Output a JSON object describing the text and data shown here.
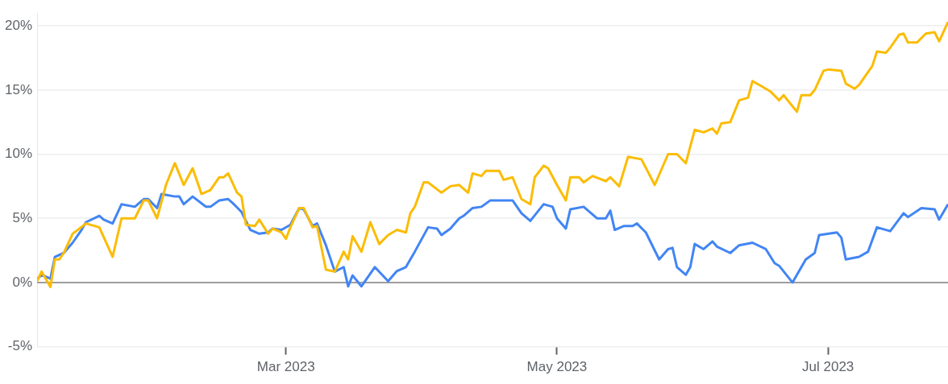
{
  "chart_data": {
    "type": "line",
    "xlim": [
      "2023-01-04",
      "2023-07-28"
    ],
    "xticks": [
      {
        "value": "2023-03-01",
        "label": "Mar 2023"
      },
      {
        "value": "2023-05-01",
        "label": "May 2023"
      },
      {
        "value": "2023-07-01",
        "label": "Jul 2023"
      }
    ],
    "ylim": [
      -5,
      21
    ],
    "yticks": [
      {
        "value": -5,
        "label": "-5%"
      },
      {
        "value": 0,
        "label": "0%"
      },
      {
        "value": 5,
        "label": "5%"
      },
      {
        "value": 10,
        "label": "10%"
      },
      {
        "value": 15,
        "label": "15%"
      },
      {
        "value": 20,
        "label": "20%"
      }
    ],
    "grid": "y",
    "legend": false,
    "marker": "none",
    "line_style": "solid",
    "ref_lines": [
      {
        "axis": "y",
        "value": 0,
        "color": "#9e9e9e"
      }
    ],
    "series": [
      {
        "color": "#fbbc04",
        "x": [
          "2023-01-04",
          "2023-01-05",
          "2023-01-07",
          "2023-01-08",
          "2023-01-09",
          "2023-01-10",
          "2023-01-12",
          "2023-01-15",
          "2023-01-18",
          "2023-01-21",
          "2023-01-23",
          "2023-01-26",
          "2023-01-28",
          "2023-01-29",
          "2023-01-31",
          "2023-02-02",
          "2023-02-04",
          "2023-02-06",
          "2023-02-08",
          "2023-02-10",
          "2023-02-12",
          "2023-02-14",
          "2023-02-15",
          "2023-02-16",
          "2023-02-18",
          "2023-02-19",
          "2023-02-20",
          "2023-02-22",
          "2023-02-23",
          "2023-02-25",
          "2023-02-26",
          "2023-02-28",
          "2023-03-01",
          "2023-03-02",
          "2023-03-04",
          "2023-03-05",
          "2023-03-07",
          "2023-03-08",
          "2023-03-10",
          "2023-03-12",
          "2023-03-14",
          "2023-03-15",
          "2023-03-16",
          "2023-03-18",
          "2023-03-20",
          "2023-03-22",
          "2023-03-24",
          "2023-03-26",
          "2023-03-28",
          "2023-03-29",
          "2023-03-30",
          "2023-04-01",
          "2023-04-02",
          "2023-04-05",
          "2023-04-07",
          "2023-04-09",
          "2023-04-11",
          "2023-04-12",
          "2023-04-14",
          "2023-04-15",
          "2023-04-18",
          "2023-04-19",
          "2023-04-21",
          "2023-04-23",
          "2023-04-25",
          "2023-04-26",
          "2023-04-28",
          "2023-04-29",
          "2023-05-01",
          "2023-05-03",
          "2023-05-04",
          "2023-05-06",
          "2023-05-07",
          "2023-05-09",
          "2023-05-12",
          "2023-05-13",
          "2023-05-15",
          "2023-05-17",
          "2023-05-20",
          "2023-05-23",
          "2023-05-26",
          "2023-05-28",
          "2023-05-30",
          "2023-06-01",
          "2023-06-03",
          "2023-06-05",
          "2023-06-06",
          "2023-06-07",
          "2023-06-09",
          "2023-06-11",
          "2023-06-13",
          "2023-06-14",
          "2023-06-16",
          "2023-06-18",
          "2023-06-20",
          "2023-06-21",
          "2023-06-24",
          "2023-06-25",
          "2023-06-27",
          "2023-06-28",
          "2023-06-30",
          "2023-07-01",
          "2023-07-04",
          "2023-07-05",
          "2023-07-07",
          "2023-07-08",
          "2023-07-11",
          "2023-07-12",
          "2023-07-14",
          "2023-07-15",
          "2023-07-17",
          "2023-07-18",
          "2023-07-19",
          "2023-07-21",
          "2023-07-23",
          "2023-07-25",
          "2023-07-26",
          "2023-07-28"
        ],
        "values": [
          0.1,
          0.85,
          -0.35,
          1.8,
          1.8,
          2.3,
          3.8,
          4.6,
          4.3,
          2.0,
          5.0,
          5.0,
          6.4,
          6.4,
          5.0,
          7.6,
          9.3,
          7.6,
          8.9,
          6.9,
          7.2,
          8.2,
          8.2,
          8.5,
          7.0,
          6.7,
          4.5,
          4.4,
          4.9,
          3.8,
          4.2,
          3.9,
          3.4,
          4.3,
          5.8,
          5.8,
          4.3,
          4.4,
          1.0,
          0.85,
          2.4,
          1.8,
          3.6,
          2.4,
          4.7,
          3.0,
          3.7,
          4.1,
          3.9,
          5.4,
          5.9,
          7.8,
          7.8,
          7.0,
          7.5,
          7.6,
          7.0,
          8.5,
          8.3,
          8.7,
          8.7,
          8.0,
          8.2,
          6.5,
          6.1,
          8.2,
          9.1,
          8.9,
          7.6,
          6.4,
          8.2,
          8.2,
          7.8,
          8.3,
          7.9,
          8.2,
          7.5,
          9.8,
          9.6,
          7.6,
          10.0,
          10.0,
          9.3,
          11.9,
          11.7,
          12.0,
          11.6,
          12.4,
          12.5,
          14.2,
          14.4,
          15.7,
          15.3,
          14.9,
          14.2,
          14.6,
          13.3,
          14.6,
          14.6,
          15.0,
          16.5,
          16.6,
          16.5,
          15.5,
          15.1,
          15.4,
          16.9,
          18.0,
          17.9,
          18.3,
          19.3,
          19.4,
          18.7,
          18.7,
          19.4,
          19.5,
          18.8,
          20.3
        ]
      },
      {
        "color": "#4285f4",
        "x": [
          "2023-01-04",
          "2023-01-05",
          "2023-01-07",
          "2023-01-08",
          "2023-01-10",
          "2023-01-12",
          "2023-01-14",
          "2023-01-15",
          "2023-01-18",
          "2023-01-19",
          "2023-01-21",
          "2023-01-23",
          "2023-01-26",
          "2023-01-28",
          "2023-01-29",
          "2023-01-31",
          "2023-02-01",
          "2023-02-04",
          "2023-02-05",
          "2023-02-06",
          "2023-02-08",
          "2023-02-11",
          "2023-02-12",
          "2023-02-14",
          "2023-02-16",
          "2023-02-17",
          "2023-02-19",
          "2023-02-21",
          "2023-02-23",
          "2023-02-25",
          "2023-02-26",
          "2023-02-28",
          "2023-03-02",
          "2023-03-04",
          "2023-03-05",
          "2023-03-07",
          "2023-03-08",
          "2023-03-10",
          "2023-03-12",
          "2023-03-14",
          "2023-03-15",
          "2023-03-16",
          "2023-03-18",
          "2023-03-21",
          "2023-03-24",
          "2023-03-26",
          "2023-03-28",
          "2023-03-30",
          "2023-04-02",
          "2023-04-04",
          "2023-04-05",
          "2023-04-07",
          "2023-04-09",
          "2023-04-10",
          "2023-04-12",
          "2023-04-14",
          "2023-04-16",
          "2023-04-19",
          "2023-04-21",
          "2023-04-23",
          "2023-04-25",
          "2023-04-28",
          "2023-04-30",
          "2023-05-01",
          "2023-05-03",
          "2023-05-04",
          "2023-05-07",
          "2023-05-10",
          "2023-05-12",
          "2023-05-13",
          "2023-05-14",
          "2023-05-16",
          "2023-05-18",
          "2023-05-19",
          "2023-05-21",
          "2023-05-24",
          "2023-05-26",
          "2023-05-27",
          "2023-05-28",
          "2023-05-30",
          "2023-05-31",
          "2023-06-01",
          "2023-06-03",
          "2023-06-05",
          "2023-06-06",
          "2023-06-09",
          "2023-06-11",
          "2023-06-14",
          "2023-06-17",
          "2023-06-19",
          "2023-06-20",
          "2023-06-23",
          "2023-06-25",
          "2023-06-26",
          "2023-06-28",
          "2023-06-29",
          "2023-07-03",
          "2023-07-04",
          "2023-07-05",
          "2023-07-08",
          "2023-07-10",
          "2023-07-12",
          "2023-07-15",
          "2023-07-18",
          "2023-07-19",
          "2023-07-22",
          "2023-07-25",
          "2023-07-26",
          "2023-07-28"
        ],
        "values": [
          0.25,
          0.6,
          0.3,
          2.0,
          2.3,
          3.1,
          4.1,
          4.7,
          5.2,
          4.9,
          4.6,
          6.1,
          5.9,
          6.5,
          6.5,
          5.8,
          6.9,
          6.7,
          6.7,
          6.1,
          6.7,
          5.9,
          5.9,
          6.4,
          6.5,
          6.2,
          5.5,
          4.1,
          3.8,
          3.9,
          4.2,
          4.1,
          4.5,
          5.8,
          5.7,
          4.4,
          4.6,
          2.9,
          0.85,
          1.2,
          -0.3,
          0.55,
          -0.3,
          1.2,
          0.1,
          0.9,
          1.2,
          2.4,
          4.3,
          4.2,
          3.7,
          4.2,
          5.0,
          5.2,
          5.8,
          5.9,
          6.4,
          6.4,
          6.4,
          5.4,
          4.8,
          6.1,
          5.9,
          5.0,
          4.2,
          5.7,
          5.9,
          5.0,
          5.0,
          5.6,
          4.1,
          4.4,
          4.4,
          4.6,
          3.9,
          1.8,
          2.6,
          2.7,
          1.2,
          0.6,
          1.2,
          3.0,
          2.6,
          3.2,
          2.8,
          2.3,
          2.9,
          3.1,
          2.6,
          1.5,
          1.3,
          0.0,
          1.2,
          1.8,
          2.3,
          3.7,
          3.9,
          3.5,
          1.8,
          2.0,
          2.4,
          4.3,
          4.0,
          5.4,
          5.1,
          5.8,
          5.7,
          4.9,
          6.1
        ]
      }
    ]
  }
}
